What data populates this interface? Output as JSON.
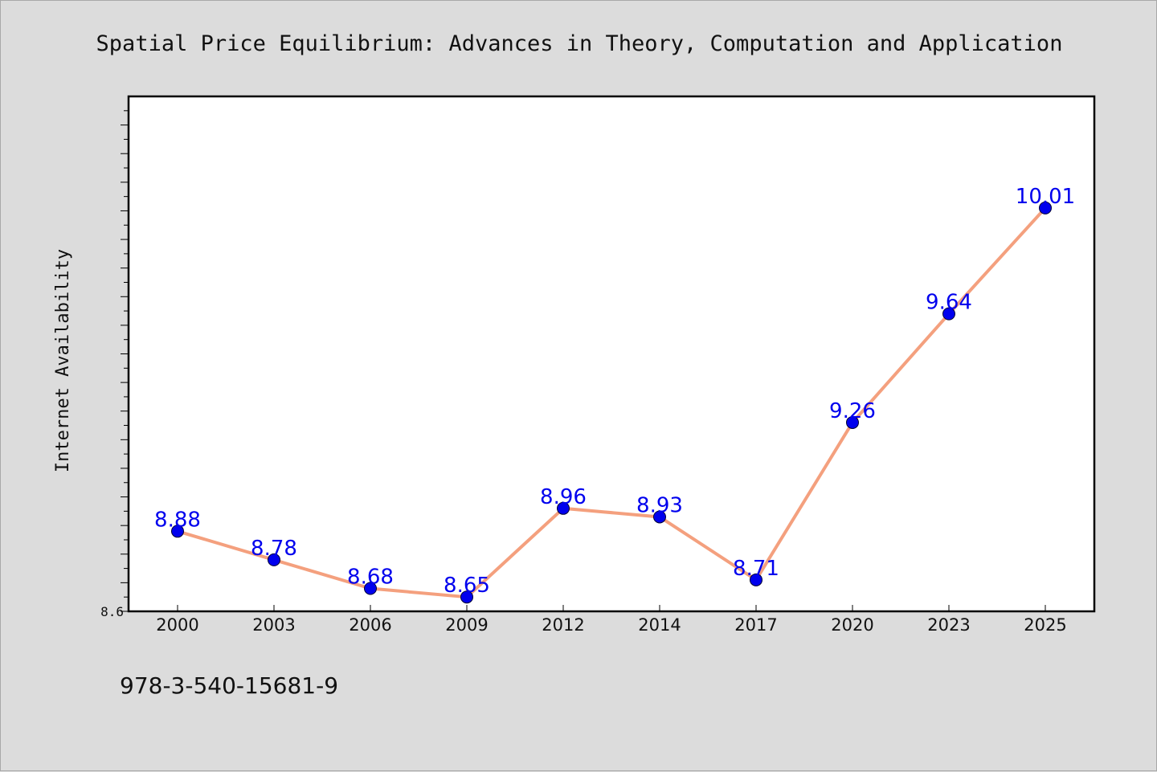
{
  "chart_data": {
    "type": "line",
    "title": "Spatial Price Equilibrium: Advances in Theory, Computation and Application",
    "xlabel": "",
    "ylabel": "Internet Availability",
    "categories": [
      "2000",
      "2003",
      "2006",
      "2009",
      "2012",
      "2014",
      "2017",
      "2020",
      "2023",
      "2025"
    ],
    "series": [
      {
        "values": [
          8.88,
          8.78,
          8.68,
          8.65,
          8.96,
          8.93,
          8.71,
          9.26,
          9.64,
          10.01
        ]
      }
    ],
    "data_labels": [
      "8.88",
      "8.78",
      "8.68",
      "8.65",
      "8.96",
      "8.93",
      "8.71",
      "9.26",
      "9.64",
      "10.01"
    ],
    "ylim": [
      8.6,
      10.4
    ],
    "y_tick_labels": [
      "8.6"
    ],
    "grid": false,
    "line_color": "#f4a07e",
    "marker_color": "#0000ee",
    "label_color": "#0000ee",
    "footer": "978-3-540-15681-9"
  }
}
